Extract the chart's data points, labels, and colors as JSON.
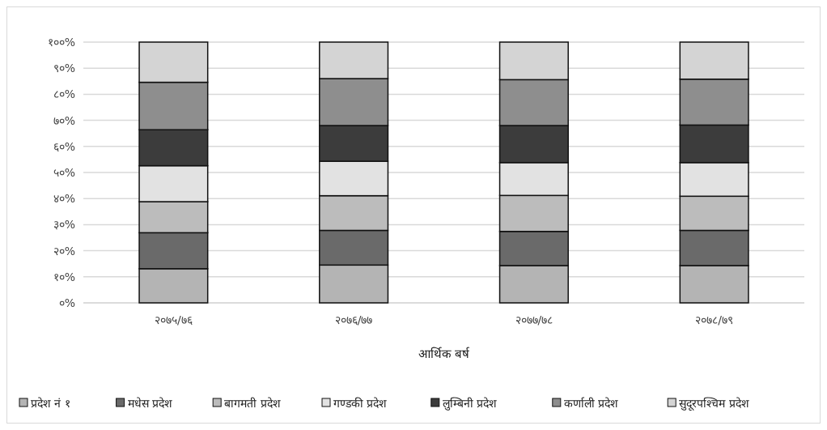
{
  "chart_data": {
    "type": "bar",
    "stacked": true,
    "xlabel": "आर्थिक बर्ष",
    "categories": [
      "२०७५/७६",
      "२०७६/७७",
      "२०७७/७८",
      "२०७८/७९"
    ],
    "series": [
      {
        "name": "प्रदेश नं १",
        "color": "#b4b4b4",
        "values": [
          13.1,
          14.5,
          14.3,
          14.3
        ]
      },
      {
        "name": "मधेस प्रदेश",
        "color": "#6a6a6a",
        "values": [
          13.8,
          13.3,
          13.1,
          13.5
        ]
      },
      {
        "name": "बागमती प्रदेश",
        "color": "#bcbcbc",
        "values": [
          11.9,
          13.3,
          13.8,
          13.1
        ]
      },
      {
        "name": "गण्डकी प्रदेश",
        "color": "#e2e2e2",
        "values": [
          13.8,
          13.2,
          12.6,
          12.9
        ]
      },
      {
        "name": "लुम्बिनी प्रदेश",
        "color": "#3c3c3c",
        "values": [
          13.8,
          13.7,
          14.2,
          14.4
        ]
      },
      {
        "name": "कर्णाली प्रदेश",
        "color": "#8e8e8e",
        "values": [
          18.2,
          18.0,
          17.6,
          17.6
        ]
      },
      {
        "name": "सुदूरपश्चिम प्रदेश",
        "color": "#d4d4d4",
        "values": [
          15.4,
          14.0,
          14.4,
          14.2
        ]
      }
    ],
    "ylim": [
      0,
      100
    ],
    "yticks": [
      {
        "value": 0,
        "label": "०%"
      },
      {
        "value": 10,
        "label": "१०%"
      },
      {
        "value": 20,
        "label": "२०%"
      },
      {
        "value": 30,
        "label": "३०%"
      },
      {
        "value": 40,
        "label": "४०%"
      },
      {
        "value": 50,
        "label": "५०%"
      },
      {
        "value": 60,
        "label": "६०%"
      },
      {
        "value": 70,
        "label": "७०%"
      },
      {
        "value": 80,
        "label": "८०%"
      },
      {
        "value": 90,
        "label": "९०%"
      },
      {
        "value": 100,
        "label": "१००%"
      }
    ],
    "grid": "y",
    "legend": "bottom"
  }
}
